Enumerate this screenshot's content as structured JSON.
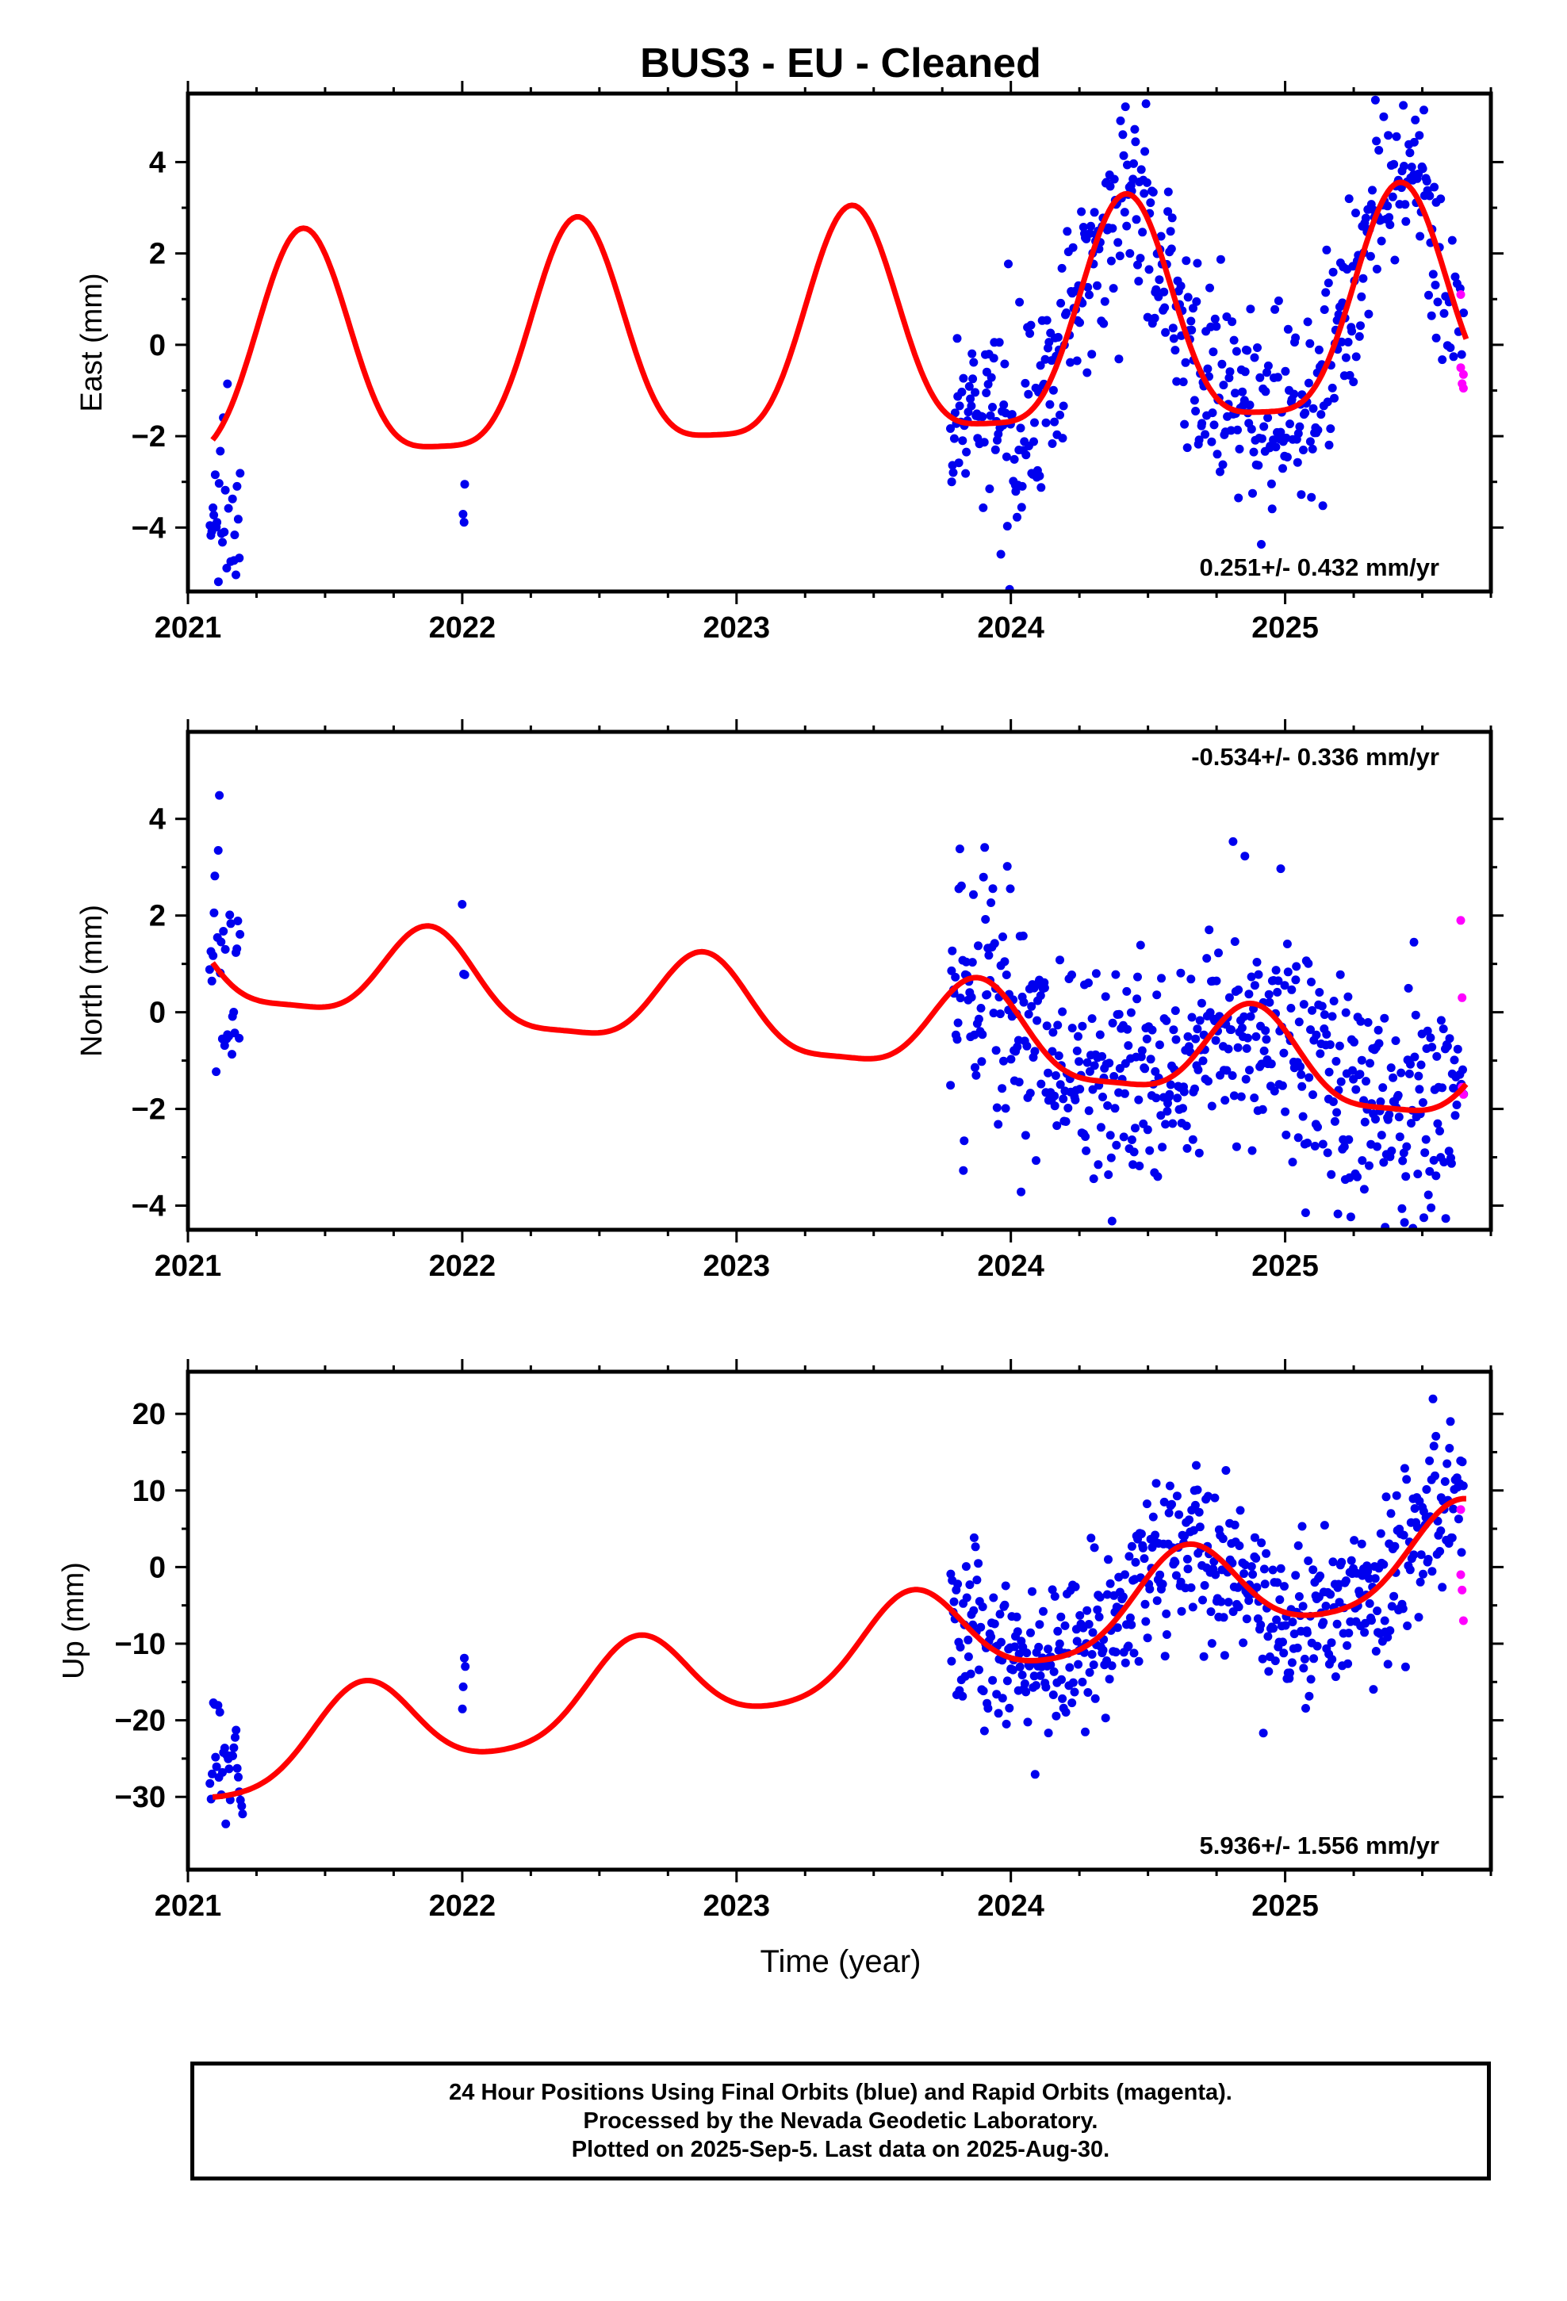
{
  "title": "BUS3  - EU - Cleaned",
  "xlabel": "Time (year)",
  "footer": {
    "line1": "24 Hour Positions Using Final Orbits (blue) and Rapid Orbits (magenta).",
    "line2": "Processed by the Nevada Geodetic Laboratory.",
    "line3": "Plotted on 2025-Sep-5. Last data on 2025-Aug-30."
  },
  "colors": {
    "final": "#0000ee",
    "rapid": "#ff00ff",
    "model": "#ff0000"
  },
  "chart_data": [
    {
      "type": "scatter",
      "panel": "east",
      "ylabel": "East (mm)",
      "xlim": [
        2021.0,
        2025.75
      ],
      "ylim": [
        -5.4,
        5.5
      ],
      "xticks": [
        2021,
        2022,
        2023,
        2024,
        2025
      ],
      "yticks": [
        -4,
        -2,
        0,
        2,
        4
      ],
      "rate_label": "0.251+/- 0.432 mm/yr",
      "rate_position": "bottom-right",
      "model": {
        "mean": 0.0,
        "rate": 0.251,
        "annual_amp": 2.45,
        "phase": 2021.42,
        "semi_amp": 0.6,
        "t0": 2023.4
      },
      "noise": 1.05,
      "final_segments": [
        {
          "start": 2021.08,
          "end": 2021.19,
          "count": 30,
          "offset": -1.8,
          "spread": 1.2
        },
        {
          "start": 2022.0,
          "end": 2022.01,
          "count": 4,
          "offset": -2.2,
          "spread": 0.8
        },
        {
          "start": 2023.78,
          "end": 2025.55,
          "count": 520,
          "offset": 0,
          "spread": 1
        },
        {
          "start": 2025.55,
          "end": 2025.65,
          "count": 18,
          "offset": 0,
          "spread": 1
        }
      ],
      "rapid_points": [
        {
          "x": 2025.64,
          "y": 1.1
        },
        {
          "x": 2025.64,
          "y": -0.5
        },
        {
          "x": 2025.645,
          "y": -0.85
        },
        {
          "x": 2025.65,
          "y": -0.65
        },
        {
          "x": 2025.65,
          "y": -0.95
        }
      ]
    },
    {
      "type": "scatter",
      "panel": "north",
      "ylabel": "North (mm)",
      "xlim": [
        2021.0,
        2025.75
      ],
      "ylim": [
        -4.5,
        5.8
      ],
      "xticks": [
        2021,
        2022,
        2023,
        2024,
        2025
      ],
      "yticks": [
        -4,
        -2,
        0,
        2,
        4
      ],
      "rate_label": "-0.534+/- 0.336 mm/yr",
      "rate_position": "top-right",
      "model": {
        "mean": 1.0,
        "rate": -0.534,
        "annual_amp": 0.95,
        "phase": 2021.88,
        "semi_amp": 0.25,
        "t0": 2021.1
      },
      "noise": 1.3,
      "final_segments": [
        {
          "start": 2021.08,
          "end": 2021.19,
          "count": 30,
          "offset": 0.0,
          "spread": 1.1
        },
        {
          "start": 2022.0,
          "end": 2022.01,
          "count": 3,
          "offset": 0.0,
          "spread": 0.5
        },
        {
          "start": 2023.78,
          "end": 2025.65,
          "count": 560,
          "offset": 0,
          "spread": 1
        }
      ],
      "rapid_points": [
        {
          "x": 2025.64,
          "y": 1.9
        },
        {
          "x": 2025.645,
          "y": 0.3
        },
        {
          "x": 2025.645,
          "y": -1.55
        },
        {
          "x": 2025.65,
          "y": -1.7
        }
      ]
    },
    {
      "type": "scatter",
      "panel": "up",
      "ylabel": "Up (mm)",
      "xlim": [
        2021.0,
        2025.75
      ],
      "ylim": [
        -39.5,
        25.5
      ],
      "xticks": [
        2021,
        2022,
        2023,
        2024,
        2025
      ],
      "yticks": [
        -30,
        -20,
        -10,
        0,
        10,
        20
      ],
      "rate_label": "5.936+/- 1.556 mm/yr",
      "rate_position": "bottom-right",
      "model": {
        "mean": -12.0,
        "rate": 5.936,
        "annual_amp": 6.0,
        "phase": 2021.64,
        "semi_amp": 1.0,
        "t0": 2023.3
      },
      "noise": 5.2,
      "final_segments": [
        {
          "start": 2021.08,
          "end": 2021.2,
          "count": 30,
          "offset": 5.0,
          "spread": 1.0
        },
        {
          "start": 2022.0,
          "end": 2022.01,
          "count": 4,
          "offset": 10.0,
          "spread": 0.6
        },
        {
          "start": 2023.78,
          "end": 2025.65,
          "count": 560,
          "offset": 0,
          "spread": 1
        }
      ],
      "rapid_points": [
        {
          "x": 2025.64,
          "y": 7.5
        },
        {
          "x": 2025.64,
          "y": -1.0
        },
        {
          "x": 2025.645,
          "y": -3.0
        },
        {
          "x": 2025.65,
          "y": -7.0
        }
      ]
    }
  ]
}
